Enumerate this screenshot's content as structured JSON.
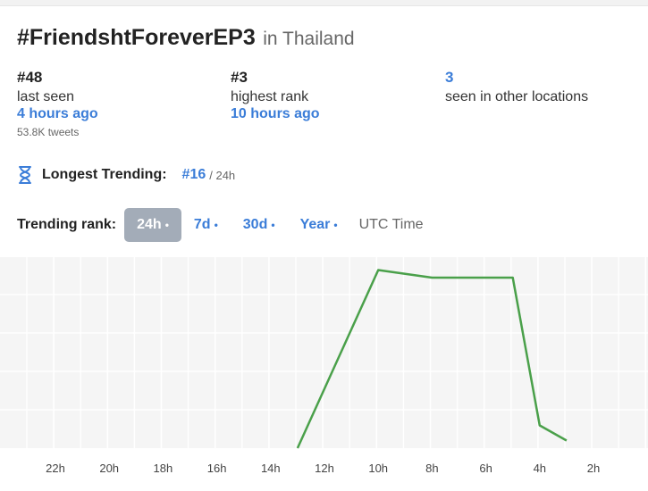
{
  "header": {
    "hashtag": "#FriendshtForeverEP3",
    "location": "in Thailand"
  },
  "stats": [
    {
      "value": "#48",
      "label": "last seen",
      "time": "4 hours ago",
      "sub": "53.8K tweets"
    },
    {
      "value": "#3",
      "label": "highest rank",
      "time": "10 hours ago"
    },
    {
      "value": "3",
      "label": "seen in other locations"
    }
  ],
  "longest": {
    "label": "Longest Trending:",
    "rank": "#16",
    "period": "/ 24h",
    "icon": "hourglass-icon"
  },
  "range": {
    "label": "Trending rank:",
    "options": [
      {
        "label": "24h",
        "active": true
      },
      {
        "label": "7d",
        "active": false
      },
      {
        "label": "30d",
        "active": false
      },
      {
        "label": "Year",
        "active": false
      }
    ],
    "dot": "•",
    "utc": "UTC Time"
  },
  "colors": {
    "accent": "#3b7dd8",
    "line": "#4aa04a",
    "active_pill": "#a3acb8"
  },
  "chart_data": {
    "type": "line",
    "x_ticks": [
      "22h",
      "20h",
      "18h",
      "16h",
      "14h",
      "12h",
      "10h",
      "8h",
      "6h",
      "4h",
      "2h"
    ],
    "y_axis_inverted": true,
    "ylim": [
      1,
      50
    ],
    "grid": true,
    "series": [
      {
        "x": [
          "13:00",
          "10:00",
          "8:00",
          "7:00",
          "6:00",
          "5:00",
          "4:00",
          "3:00"
        ],
        "values": [
          50,
          3,
          5,
          5,
          5,
          5,
          44,
          48
        ]
      }
    ]
  }
}
